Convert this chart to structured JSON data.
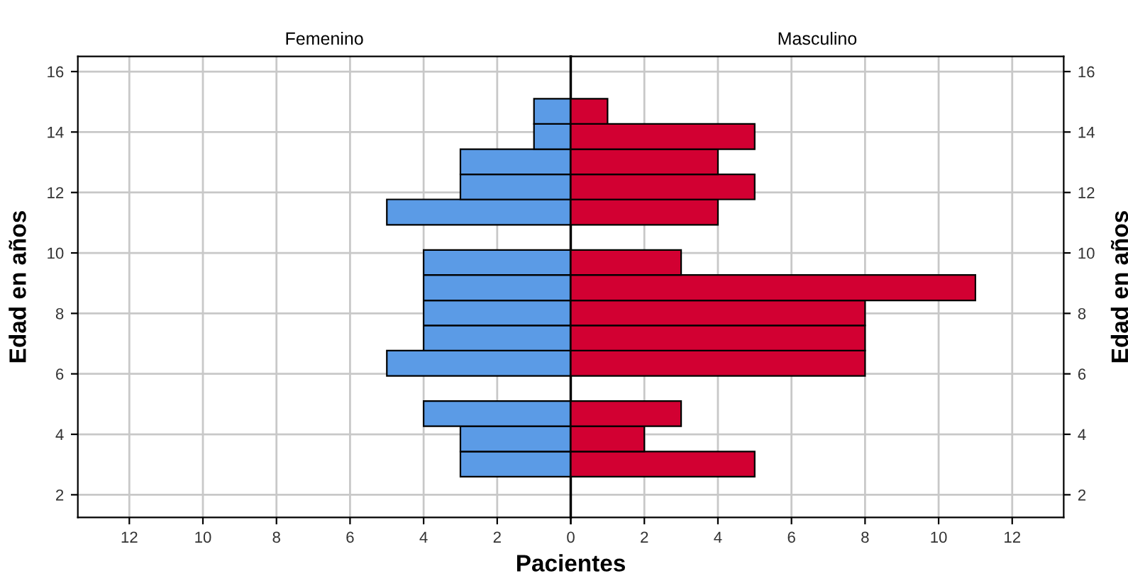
{
  "chart_data": [
    {
      "type": "histogram",
      "orientation": "horizontal",
      "title": "Femenino",
      "ylabel": "Edad en años",
      "xlabel": "Pacientes",
      "bins": [
        2.6,
        3.43,
        4.27,
        5.1,
        5.93,
        6.77,
        7.6,
        8.43,
        9.27,
        10.1,
        10.93,
        11.77,
        12.6,
        13.43,
        14.27,
        15.1
      ],
      "values": [
        3,
        3,
        4,
        0,
        5,
        4,
        4,
        4,
        4,
        0,
        5,
        3,
        3,
        1,
        1
      ],
      "color": "#5b9be6",
      "xlim": [
        13.4,
        0
      ],
      "xticks": [
        12,
        10,
        8,
        6,
        4,
        2,
        {
          "value": 0,
          "label": null
        }
      ],
      "ylim": [
        1.25,
        16.5
      ],
      "yticks": [
        2,
        4,
        6,
        8,
        10,
        12,
        14,
        16
      ],
      "grid": true
    },
    {
      "type": "histogram",
      "orientation": "horizontal",
      "title": "Masculino",
      "ylabel": "Edad en años",
      "bins": [
        2.6,
        3.43,
        4.27,
        5.1,
        5.93,
        6.77,
        7.6,
        8.43,
        9.27,
        10.1,
        10.93,
        11.77,
        12.6,
        13.43,
        14.27,
        15.1
      ],
      "values": [
        5,
        2,
        3,
        0,
        8,
        8,
        8,
        11,
        3,
        0,
        4,
        5,
        4,
        5,
        1
      ],
      "color": "#d20032",
      "xlim": [
        0,
        13.4
      ],
      "xticks": [
        0,
        2,
        4,
        6,
        8,
        10,
        12
      ],
      "ylim": [
        1.25,
        16.5
      ],
      "yticks": [
        2,
        4,
        6,
        8,
        10,
        12,
        14,
        16
      ],
      "grid": true
    }
  ]
}
